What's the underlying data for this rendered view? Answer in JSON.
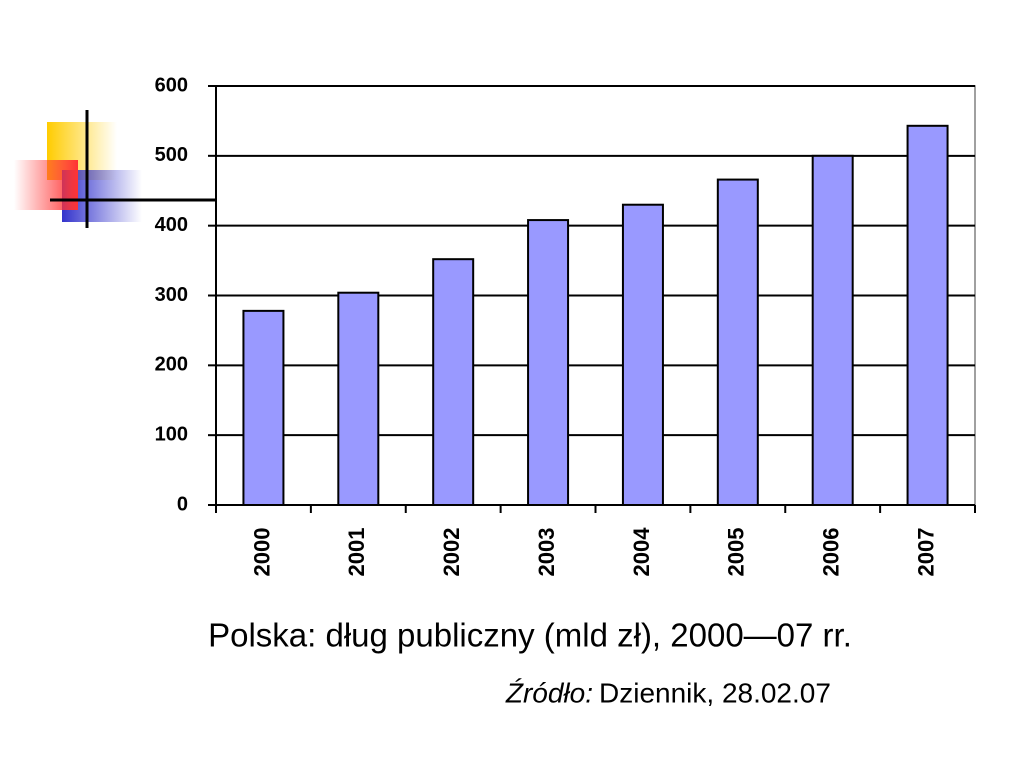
{
  "chart_data": {
    "type": "bar",
    "title": "Polska: dług publiczny (mld zł), 2000—07 rr.",
    "source_label": "Źródło:",
    "source": "Dziennik, 28.02.07",
    "categories": [
      "2000",
      "2001",
      "2002",
      "2003",
      "2004",
      "2005",
      "2006",
      "2007"
    ],
    "values": [
      278,
      304,
      352,
      408,
      430,
      466,
      500,
      543
    ],
    "color": "#9999ff",
    "ylim": [
      0,
      600
    ],
    "yticks": [
      0,
      100,
      200,
      300,
      400,
      500,
      600
    ],
    "grid": true
  }
}
